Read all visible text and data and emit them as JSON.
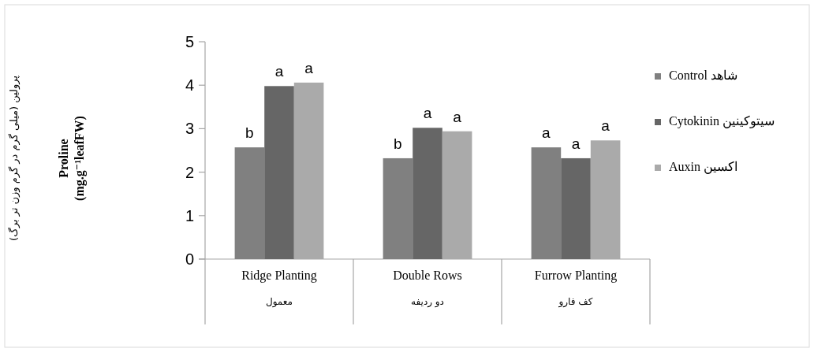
{
  "chart_data": {
    "type": "bar",
    "ylabel": "پرولین (میلی گرم در گرم وزن تر برگ)\nProline\n(mg.g⁻¹leafFW)",
    "categories": [
      "Ridge Planting\nمعمول",
      "Double Rows\nدو ردیفه",
      "Furrow Planting\nکف فارو"
    ],
    "series": [
      {
        "name": "Control شاهد",
        "color": "#808080",
        "values": [
          2.57,
          2.32,
          2.57
        ],
        "value_labels": [
          "b",
          "b",
          "a"
        ]
      },
      {
        "name": "Cytokinin سیتوکینین",
        "color": "#666666",
        "values": [
          3.98,
          3.02,
          2.32
        ],
        "value_labels": [
          "a",
          "a",
          "a"
        ]
      },
      {
        "name": "Auxin اکسین",
        "color": "#aaaaaa",
        "values": [
          4.06,
          2.94,
          2.73
        ],
        "value_labels": [
          "a",
          "a",
          "a"
        ]
      }
    ],
    "ylim": [
      0,
      5
    ],
    "yticks": [
      0,
      1,
      2,
      3,
      4,
      5
    ],
    "grid": false,
    "legend": "right"
  }
}
